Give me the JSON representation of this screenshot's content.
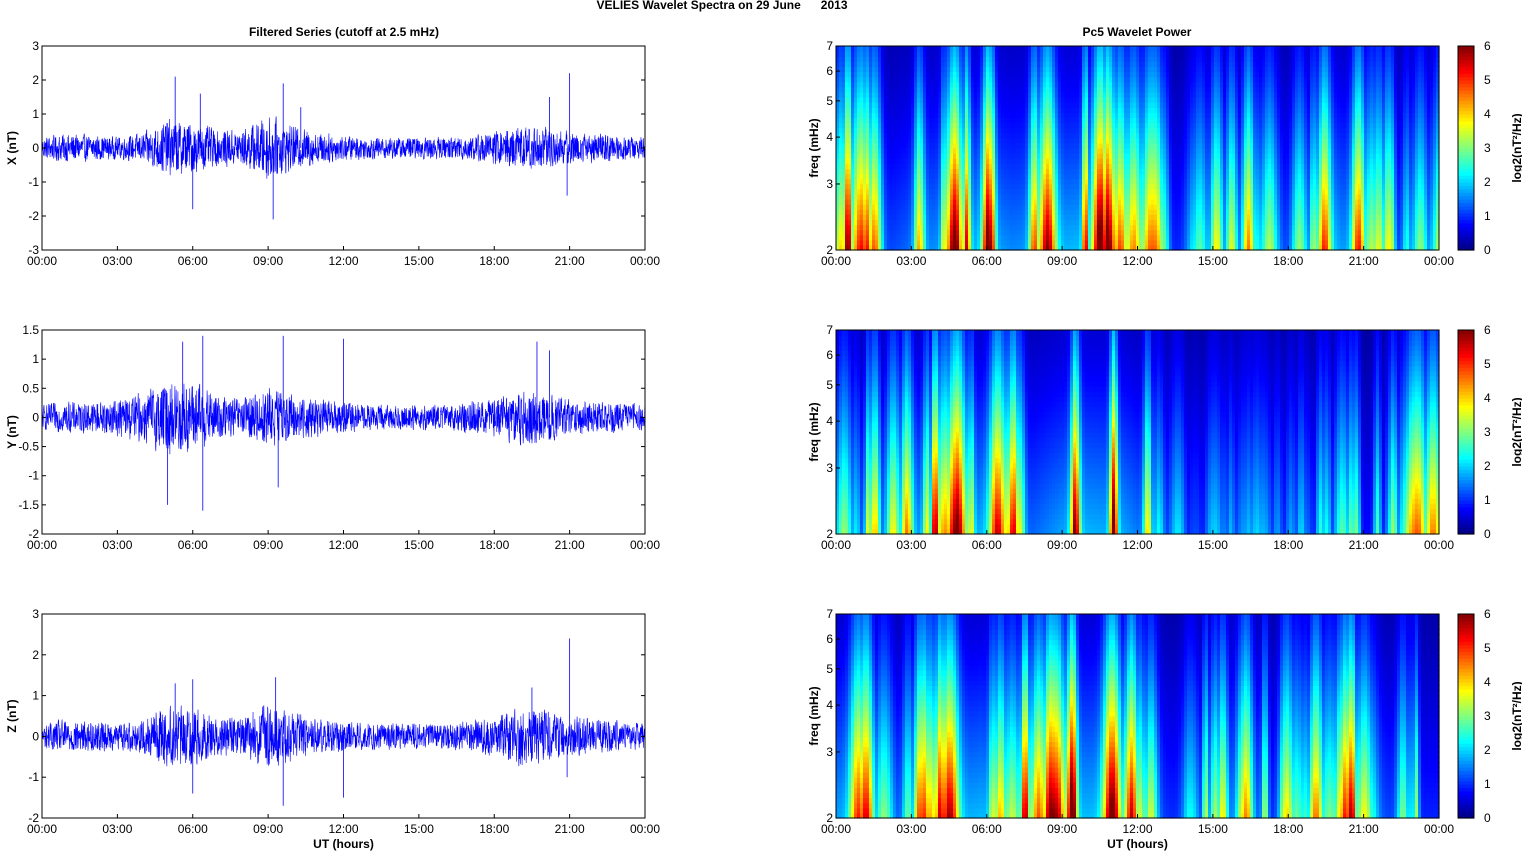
{
  "figure": {
    "title": "VELIES Wavelet Spectra on 29 June      2013",
    "left_column_title": "Filtered Series (cutoff at 2.5 mHz)",
    "right_column_title": "Pc5 Wavelet Power"
  },
  "colors": {
    "series_line": "#0000ff",
    "axes": "#000000",
    "background": "#ffffff",
    "colormap": "jet"
  },
  "chart_data": [
    {
      "type": "line",
      "component": "X",
      "ylabel": "X (nT)",
      "xlabel": "",
      "xticks": [
        "00:00",
        "03:00",
        "06:00",
        "09:00",
        "12:00",
        "15:00",
        "18:00",
        "21:00",
        "00:00"
      ],
      "xlim_hours": [
        0,
        24
      ],
      "yticks": [
        -3,
        -2,
        -1,
        0,
        1,
        2,
        3
      ],
      "ylim": [
        -3,
        3
      ],
      "series": [
        {
          "activity_profile": [
            {
              "hour": 0,
              "amp": 0.3
            },
            {
              "hour": 1,
              "amp": 0.4
            },
            {
              "hour": 2,
              "amp": 0.35
            },
            {
              "hour": 3,
              "amp": 0.3
            },
            {
              "hour": 4,
              "amp": 0.4
            },
            {
              "hour": 5,
              "amp": 0.8
            },
            {
              "hour": 6,
              "amp": 0.7
            },
            {
              "hour": 7,
              "amp": 0.5
            },
            {
              "hour": 8,
              "amp": 0.5
            },
            {
              "hour": 9,
              "amp": 0.9
            },
            {
              "hour": 10,
              "amp": 0.6
            },
            {
              "hour": 11,
              "amp": 0.45
            },
            {
              "hour": 12,
              "amp": 0.35
            },
            {
              "hour": 13,
              "amp": 0.3
            },
            {
              "hour": 14,
              "amp": 0.3
            },
            {
              "hour": 15,
              "amp": 0.3
            },
            {
              "hour": 16,
              "amp": 0.3
            },
            {
              "hour": 17,
              "amp": 0.35
            },
            {
              "hour": 18,
              "amp": 0.45
            },
            {
              "hour": 19,
              "amp": 0.6
            },
            {
              "hour": 20,
              "amp": 0.6
            },
            {
              "hour": 21,
              "amp": 0.45
            },
            {
              "hour": 22,
              "amp": 0.4
            },
            {
              "hour": 23,
              "amp": 0.35
            },
            {
              "hour": 24,
              "amp": 0.3
            }
          ],
          "spikes": [
            {
              "hour": 5.3,
              "value": 2.1
            },
            {
              "hour": 6.0,
              "value": -1.8
            },
            {
              "hour": 6.3,
              "value": 1.6
            },
            {
              "hour": 9.2,
              "value": -2.1
            },
            {
              "hour": 9.6,
              "value": 1.9
            },
            {
              "hour": 10.3,
              "value": 1.2
            },
            {
              "hour": 20.2,
              "value": 1.5
            },
            {
              "hour": 21.0,
              "value": 2.2
            },
            {
              "hour": 20.9,
              "value": -1.4
            }
          ]
        }
      ]
    },
    {
      "type": "heatmap",
      "component": "X",
      "ylabel": "freq (mHz)",
      "xlabel": "",
      "xticks": [
        "00:00",
        "03:00",
        "06:00",
        "09:00",
        "12:00",
        "15:00",
        "18:00",
        "21:00",
        "00:00"
      ],
      "xlim_hours": [
        0,
        24
      ],
      "yticks": [
        2,
        3,
        4,
        5,
        6,
        7
      ],
      "ylim": [
        2,
        7
      ],
      "yscale": "log",
      "colorbar": {
        "label": "log2(nT²/Hz)",
        "ticks": [
          0,
          1,
          2,
          3,
          4,
          5,
          6
        ],
        "range": [
          0,
          6
        ]
      },
      "activity_profile": [
        {
          "hour": 0.5,
          "power": 5.5
        },
        {
          "hour": 2.0,
          "power": 3.5
        },
        {
          "hour": 3.0,
          "power": 4.5
        },
        {
          "hour": 4.5,
          "power": 5.5
        },
        {
          "hour": 5.7,
          "power": 6.0
        },
        {
          "hour": 7.0,
          "power": 5.0
        },
        {
          "hour": 8.5,
          "power": 5.5
        },
        {
          "hour": 9.5,
          "power": 6.0
        },
        {
          "hour": 11.0,
          "power": 6.0
        },
        {
          "hour": 12.0,
          "power": 4.5
        },
        {
          "hour": 14.0,
          "power": 2.5
        },
        {
          "hour": 16.0,
          "power": 4.0
        },
        {
          "hour": 17.5,
          "power": 3.0
        },
        {
          "hour": 18.5,
          "power": 4.0
        },
        {
          "hour": 20.0,
          "power": 5.5
        },
        {
          "hour": 21.5,
          "power": 4.0
        },
        {
          "hour": 23.0,
          "power": 3.0
        }
      ]
    },
    {
      "type": "line",
      "component": "Y",
      "ylabel": "Y (nT)",
      "xlabel": "",
      "xticks": [
        "00:00",
        "03:00",
        "06:00",
        "09:00",
        "12:00",
        "15:00",
        "18:00",
        "21:00",
        "00:00"
      ],
      "xlim_hours": [
        0,
        24
      ],
      "yticks": [
        -2,
        -1.5,
        -1,
        -0.5,
        0,
        0.5,
        1,
        1.5
      ],
      "ylim": [
        -2,
        1.5
      ],
      "series": [
        {
          "activity_profile": [
            {
              "hour": 0,
              "amp": 0.2
            },
            {
              "hour": 1,
              "amp": 0.25
            },
            {
              "hour": 2,
              "amp": 0.25
            },
            {
              "hour": 3,
              "amp": 0.3
            },
            {
              "hour": 4,
              "amp": 0.4
            },
            {
              "hour": 5,
              "amp": 0.6
            },
            {
              "hour": 6,
              "amp": 0.6
            },
            {
              "hour": 7,
              "amp": 0.35
            },
            {
              "hour": 8,
              "amp": 0.3
            },
            {
              "hour": 9,
              "amp": 0.5
            },
            {
              "hour": 10,
              "amp": 0.35
            },
            {
              "hour": 11,
              "amp": 0.3
            },
            {
              "hour": 12,
              "amp": 0.25
            },
            {
              "hour": 13,
              "amp": 0.2
            },
            {
              "hour": 14,
              "amp": 0.2
            },
            {
              "hour": 15,
              "amp": 0.2
            },
            {
              "hour": 16,
              "amp": 0.2
            },
            {
              "hour": 17,
              "amp": 0.25
            },
            {
              "hour": 18,
              "amp": 0.3
            },
            {
              "hour": 19,
              "amp": 0.45
            },
            {
              "hour": 20,
              "amp": 0.4
            },
            {
              "hour": 21,
              "amp": 0.3
            },
            {
              "hour": 22,
              "amp": 0.25
            },
            {
              "hour": 23,
              "amp": 0.25
            },
            {
              "hour": 24,
              "amp": 0.2
            }
          ],
          "spikes": [
            {
              "hour": 5.0,
              "value": -1.5
            },
            {
              "hour": 5.6,
              "value": 1.3
            },
            {
              "hour": 6.4,
              "value": 1.4
            },
            {
              "hour": 6.4,
              "value": -1.6
            },
            {
              "hour": 9.6,
              "value": 1.4
            },
            {
              "hour": 9.4,
              "value": -1.2
            },
            {
              "hour": 12.0,
              "value": 1.35
            },
            {
              "hour": 19.7,
              "value": 1.3
            },
            {
              "hour": 20.2,
              "value": 1.15
            }
          ]
        }
      ]
    },
    {
      "type": "heatmap",
      "component": "Y",
      "ylabel": "freq (mHz)",
      "xlabel": "",
      "xticks": [
        "00:00",
        "03:00",
        "06:00",
        "09:00",
        "12:00",
        "15:00",
        "18:00",
        "21:00",
        "00:00"
      ],
      "xlim_hours": [
        0,
        24
      ],
      "yticks": [
        2,
        3,
        4,
        5,
        6,
        7
      ],
      "ylim": [
        2,
        7
      ],
      "yscale": "log",
      "colorbar": {
        "label": "log2(nT²/Hz)",
        "ticks": [
          0,
          1,
          2,
          3,
          4,
          5,
          6
        ],
        "range": [
          0,
          6
        ]
      },
      "activity_profile": [
        {
          "hour": 0.8,
          "power": 3.0
        },
        {
          "hour": 2.3,
          "power": 4.0
        },
        {
          "hour": 3.0,
          "power": 5.0
        },
        {
          "hour": 4.5,
          "power": 6.0
        },
        {
          "hour": 5.3,
          "power": 5.5
        },
        {
          "hour": 6.3,
          "power": 6.0
        },
        {
          "hour": 7.5,
          "power": 4.0
        },
        {
          "hour": 8.5,
          "power": 5.0
        },
        {
          "hour": 9.5,
          "power": 6.0
        },
        {
          "hour": 11.5,
          "power": 5.5
        },
        {
          "hour": 14.0,
          "power": 1.5
        },
        {
          "hour": 16.0,
          "power": 2.5
        },
        {
          "hour": 19.0,
          "power": 2.0
        },
        {
          "hour": 20.0,
          "power": 2.5
        },
        {
          "hour": 21.5,
          "power": 2.5
        },
        {
          "hour": 23.0,
          "power": 4.0
        }
      ]
    },
    {
      "type": "line",
      "component": "Z",
      "ylabel": "Z (nT)",
      "xlabel": "UT (hours)",
      "xticks": [
        "00:00",
        "03:00",
        "06:00",
        "09:00",
        "12:00",
        "15:00",
        "18:00",
        "21:00",
        "00:00"
      ],
      "xlim_hours": [
        0,
        24
      ],
      "yticks": [
        -2,
        -1,
        0,
        1,
        2,
        3
      ],
      "ylim": [
        -2,
        3
      ],
      "series": [
        {
          "activity_profile": [
            {
              "hour": 0,
              "amp": 0.3
            },
            {
              "hour": 1,
              "amp": 0.4
            },
            {
              "hour": 2,
              "amp": 0.35
            },
            {
              "hour": 3,
              "amp": 0.3
            },
            {
              "hour": 4,
              "amp": 0.4
            },
            {
              "hour": 5,
              "amp": 0.7
            },
            {
              "hour": 6,
              "amp": 0.65
            },
            {
              "hour": 7,
              "amp": 0.45
            },
            {
              "hour": 8,
              "amp": 0.45
            },
            {
              "hour": 9,
              "amp": 0.8
            },
            {
              "hour": 10,
              "amp": 0.55
            },
            {
              "hour": 11,
              "amp": 0.4
            },
            {
              "hour": 12,
              "amp": 0.35
            },
            {
              "hour": 13,
              "amp": 0.3
            },
            {
              "hour": 14,
              "amp": 0.3
            },
            {
              "hour": 15,
              "amp": 0.3
            },
            {
              "hour": 16,
              "amp": 0.3
            },
            {
              "hour": 17,
              "amp": 0.35
            },
            {
              "hour": 18,
              "amp": 0.45
            },
            {
              "hour": 19,
              "amp": 0.65
            },
            {
              "hour": 20,
              "amp": 0.6
            },
            {
              "hour": 21,
              "amp": 0.45
            },
            {
              "hour": 22,
              "amp": 0.4
            },
            {
              "hour": 23,
              "amp": 0.35
            },
            {
              "hour": 24,
              "amp": 0.3
            }
          ],
          "spikes": [
            {
              "hour": 5.3,
              "value": 1.3
            },
            {
              "hour": 6.0,
              "value": 1.4
            },
            {
              "hour": 6.0,
              "value": -1.4
            },
            {
              "hour": 9.3,
              "value": 1.45
            },
            {
              "hour": 9.6,
              "value": -1.7
            },
            {
              "hour": 12.0,
              "value": -1.5
            },
            {
              "hour": 19.5,
              "value": 1.2
            },
            {
              "hour": 21.0,
              "value": 2.4
            },
            {
              "hour": 20.9,
              "value": -1.0
            }
          ]
        }
      ]
    },
    {
      "type": "heatmap",
      "component": "Z",
      "ylabel": "freq (mHz)",
      "xlabel": "UT (hours)",
      "xticks": [
        "00:00",
        "03:00",
        "06:00",
        "09:00",
        "12:00",
        "15:00",
        "18:00",
        "21:00",
        "00:00"
      ],
      "xlim_hours": [
        0,
        24
      ],
      "yticks": [
        2,
        3,
        4,
        5,
        6,
        7
      ],
      "ylim": [
        2,
        7
      ],
      "yscale": "log",
      "colorbar": {
        "label": "log2(nT²/Hz)",
        "ticks": [
          0,
          1,
          2,
          3,
          4,
          5,
          6
        ],
        "range": [
          0,
          6
        ]
      },
      "activity_profile": [
        {
          "hour": 0.6,
          "power": 5.5
        },
        {
          "hour": 2.0,
          "power": 3.5
        },
        {
          "hour": 3.2,
          "power": 4.5
        },
        {
          "hour": 4.8,
          "power": 5.5
        },
        {
          "hour": 5.8,
          "power": 6.0
        },
        {
          "hour": 7.0,
          "power": 5.0
        },
        {
          "hour": 8.6,
          "power": 5.5
        },
        {
          "hour": 9.6,
          "power": 6.0
        },
        {
          "hour": 11.2,
          "power": 6.0
        },
        {
          "hour": 12.0,
          "power": 4.5
        },
        {
          "hour": 14.0,
          "power": 2.5
        },
        {
          "hour": 16.0,
          "power": 4.0
        },
        {
          "hour": 17.5,
          "power": 3.0
        },
        {
          "hour": 18.6,
          "power": 4.0
        },
        {
          "hour": 20.0,
          "power": 5.5
        },
        {
          "hour": 21.5,
          "power": 4.0
        },
        {
          "hour": 23.0,
          "power": 3.0
        }
      ]
    }
  ]
}
